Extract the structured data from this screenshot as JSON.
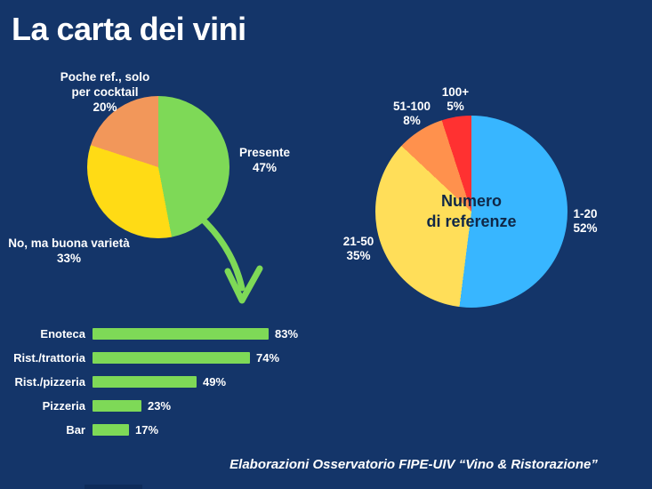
{
  "page": {
    "background": "#143569",
    "title": "La carta dei vini",
    "footer": "Elaborazioni Osservatorio FIPE-UIV “Vino & Ristorazione”",
    "accent_green": "#7ed957",
    "text_color": "#ffffff"
  },
  "chart_data": [
    {
      "id": "carta-vini-presenza",
      "type": "pie",
      "title": "",
      "categories": [
        "Presente",
        "No, ma buona varietà",
        "Poche ref., solo per cocktail"
      ],
      "values": [
        47,
        33,
        20
      ],
      "colors": [
        "#7ed957",
        "#ffdb15",
        "#f2975a"
      ],
      "labels_position": "callout",
      "start_angle": "12-oclock-clockwise",
      "callouts": [
        {
          "line1": "Presente",
          "pct": "47%"
        },
        {
          "line1": "No, ma buona varietà",
          "pct": "33%"
        },
        {
          "line1": "Poche ref., solo",
          "line2": "per cocktail",
          "pct": "20%"
        }
      ]
    },
    {
      "id": "numero-referenze",
      "type": "pie",
      "title": "Numero di referenze",
      "center_label_line1": "Numero",
      "center_label_line2": "di referenze",
      "center_text_color": "#0f2747",
      "categories": [
        "1-20",
        "21-50",
        "51-100",
        "100+"
      ],
      "values": [
        52,
        35,
        8,
        5
      ],
      "colors": [
        "#38b6ff",
        "#ffde59",
        "#ff914d",
        "#ff3131"
      ],
      "labels_position": "callout",
      "start_angle": "12-oclock-clockwise",
      "callouts": [
        {
          "line1": "1-20",
          "pct": "52%"
        },
        {
          "line1": "21-50",
          "pct": "35%"
        },
        {
          "line1": "51-100",
          "pct": "8%"
        },
        {
          "line1": "100+",
          "pct": "5%"
        }
      ]
    },
    {
      "id": "carta-vini-per-tipologia",
      "type": "bar",
      "orientation": "horizontal",
      "categories": [
        "Enoteca",
        "Rist./trattoria",
        "Rist./pizzeria",
        "Pizzeria",
        "Bar"
      ],
      "values": [
        83,
        74,
        49,
        23,
        17
      ],
      "value_labels": [
        "83%",
        "74%",
        "49%",
        "23%",
        "17%"
      ],
      "bar_color": "#7ed957",
      "xlim": [
        0,
        100
      ]
    }
  ]
}
